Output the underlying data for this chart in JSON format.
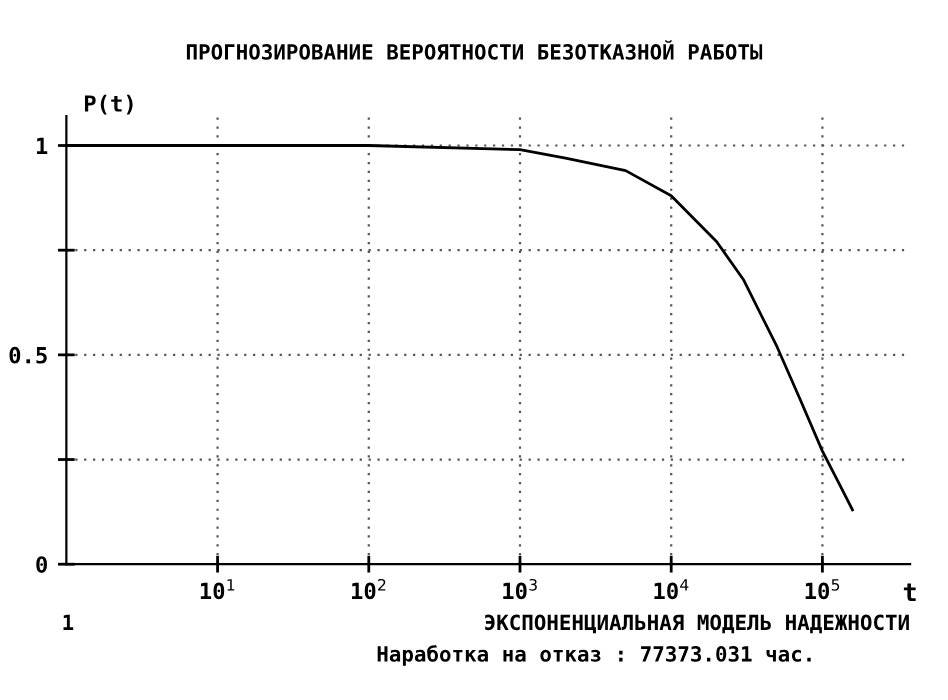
{
  "chart_data": {
    "type": "line",
    "title": "ПРОГНОЗИРОВАНИЕ ВЕРОЯТНОСТИ БЕЗОТКАЗНОЙ РАБОТЫ",
    "xlabel": "t",
    "ylabel": "P(t)",
    "x": [
      1,
      10,
      100,
      1000,
      2000,
      5000,
      10000,
      20000,
      30000,
      50000,
      70000,
      100000,
      130000,
      158000
    ],
    "series": [
      {
        "color": "#000000",
        "values": [
          1,
          1,
          1,
          0.99,
          0.97,
          0.94,
          0.88,
          0.77,
          0.68,
          0.52,
          0.4,
          0.27,
          0.19,
          0.13
        ]
      }
    ],
    "log": "x",
    "xlim": [
      1,
      380000
    ],
    "ylim": [
      0,
      1.07
    ],
    "xticks": [
      {
        "value": 10,
        "label": "10$^{1}$"
      },
      {
        "value": 100,
        "label": "10$^{2}$"
      },
      {
        "value": 1000,
        "label": "10$^{3}$"
      },
      {
        "value": 10000,
        "label": "10$^{4}$"
      },
      {
        "value": 100000,
        "label": "10$^{5}$"
      }
    ],
    "yticks": [
      0,
      {
        "value": 0.25,
        "label": null
      },
      0.5,
      {
        "value": 0.75,
        "label": null
      },
      1
    ],
    "grid": true,
    "marker": "none",
    "line_style": "solid",
    "legend": false,
    "annotations": [
      "1",
      "ЭКСПОНЕНЦИАЛЬНАЯ МОДЕЛЬ НАДЕЖНОСТИ",
      "Наработка на отказ : 77373.031 час."
    ]
  }
}
